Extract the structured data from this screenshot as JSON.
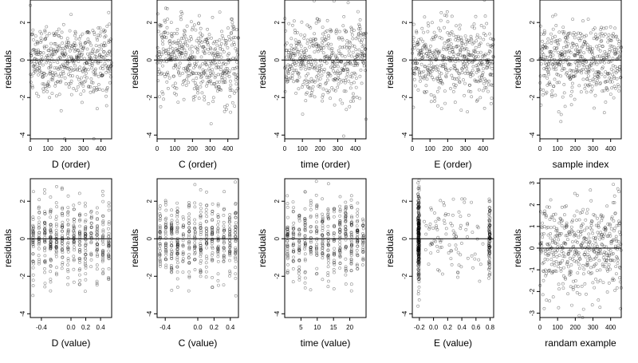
{
  "chart_data": [
    {
      "type": "scatter",
      "xlabel": "D (order)",
      "ylabel": "residuals",
      "xticks": [
        "0",
        "100",
        "200",
        "300",
        "400"
      ],
      "xlim": [
        0,
        460
      ],
      "yticks": [
        "-4",
        "-2",
        "0",
        "2"
      ],
      "ylim": [
        -4.2,
        3.2
      ],
      "hline": 0,
      "pattern": "noise",
      "n": 460
    },
    {
      "type": "scatter",
      "xlabel": "C (order)",
      "ylabel": "residuals",
      "xticks": [
        "0",
        "100",
        "200",
        "300",
        "400"
      ],
      "xlim": [
        0,
        460
      ],
      "yticks": [
        "-4",
        "-2",
        "0",
        "2"
      ],
      "ylim": [
        -4.2,
        3.2
      ],
      "hline": 0,
      "pattern": "wave",
      "n": 460
    },
    {
      "type": "scatter",
      "xlabel": "time (order)",
      "ylabel": "residuals",
      "xticks": [
        "0",
        "100",
        "200",
        "300",
        "400"
      ],
      "xlim": [
        0,
        460
      ],
      "yticks": [
        "-4",
        "-2",
        "0",
        "2"
      ],
      "ylim": [
        -4.2,
        3.2
      ],
      "hline": 0,
      "pattern": "noise",
      "n": 460
    },
    {
      "type": "scatter",
      "xlabel": "E (order)",
      "ylabel": "residuals",
      "xticks": [
        "0",
        "100",
        "200",
        "300",
        "400"
      ],
      "xlim": [
        0,
        460
      ],
      "yticks": [
        "-4",
        "-2",
        "0",
        "2"
      ],
      "ylim": [
        -4.2,
        3.2
      ],
      "hline": 0,
      "pattern": "noise",
      "n": 460
    },
    {
      "type": "scatter",
      "xlabel": "sample index",
      "ylabel": "residuals",
      "xticks": [
        "0",
        "100",
        "200",
        "300",
        "400"
      ],
      "xlim": [
        0,
        460
      ],
      "yticks": [
        "-4",
        "-2",
        "0",
        "2"
      ],
      "ylim": [
        -4.2,
        3.2
      ],
      "hline": 0,
      "pattern": "noise",
      "n": 460
    },
    {
      "type": "scatter",
      "xlabel": "D (value)",
      "ylabel": "residuals",
      "xticks": [
        "-0.4",
        "0.0",
        "0.2",
        "0.4"
      ],
      "xlim": [
        -0.55,
        0.55
      ],
      "yticks": [
        "-4",
        "-2",
        "0",
        "2"
      ],
      "ylim": [
        -4.2,
        3.2
      ],
      "hline": 0,
      "pattern": "columns",
      "n": 460
    },
    {
      "type": "scatter",
      "xlabel": "C (value)",
      "ylabel": "residuals",
      "xticks": [
        "-0.4",
        "0.0",
        "0.2",
        "0.4"
      ],
      "xlim": [
        -0.5,
        0.5
      ],
      "yticks": [
        "-4",
        "-2",
        "0",
        "2"
      ],
      "ylim": [
        -4.2,
        3.2
      ],
      "hline": 0,
      "pattern": "columns",
      "n": 460
    },
    {
      "type": "scatter",
      "xlabel": "time (value)",
      "ylabel": "residuals",
      "xticks": [
        "5",
        "10",
        "15",
        "20"
      ],
      "xlim": [
        0,
        25
      ],
      "yticks": [
        "-4",
        "-2",
        "0",
        "2"
      ],
      "ylim": [
        -4.2,
        3.2
      ],
      "hline": 0,
      "pattern": "columns",
      "n": 460
    },
    {
      "type": "scatter",
      "xlabel": "E (value)",
      "ylabel": "residuals",
      "xticks": [
        "-0.2",
        "0.0",
        "0.2",
        "0.4",
        "0.6",
        "0.8"
      ],
      "xlim": [
        -0.3,
        0.85
      ],
      "yticks": [
        "-4",
        "-2",
        "0",
        "2"
      ],
      "ylim": [
        -4.2,
        3.2
      ],
      "hline": 0,
      "pattern": "edges",
      "n": 460
    },
    {
      "type": "scatter",
      "xlabel": "randam example",
      "ylabel": "residuals",
      "xticks": [
        "0",
        "100",
        "200",
        "300",
        "400"
      ],
      "xlim": [
        0,
        460
      ],
      "yticks": [
        "-3",
        "-2",
        "-1",
        "0",
        "1",
        "2",
        "3"
      ],
      "ylim": [
        -3.2,
        3.2
      ],
      "hline": 0,
      "pattern": "random",
      "n": 460
    }
  ]
}
